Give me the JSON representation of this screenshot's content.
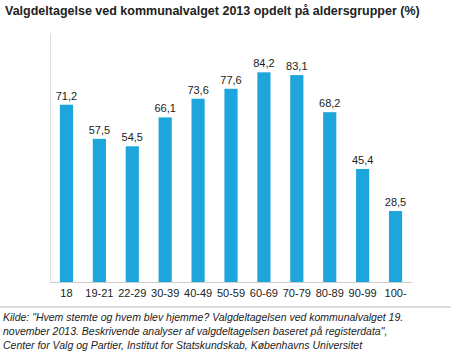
{
  "chart_data": {
    "type": "bar",
    "title": "Valgdeltagelse ved kommunalvalget 2013 opdelt på aldersgrupper (%)",
    "categories": [
      "18",
      "19-21",
      "22-29",
      "30-39",
      "40-49",
      "50-59",
      "60-69",
      "70-79",
      "80-89",
      "90-99",
      "100-"
    ],
    "values": [
      71.2,
      57.5,
      54.5,
      66.1,
      73.6,
      77.6,
      84.2,
      83.1,
      68.2,
      45.4,
      28.5
    ],
    "value_labels": [
      "71,2",
      "57,5",
      "54,5",
      "66,1",
      "73,6",
      "77,6",
      "84,2",
      "83,1",
      "68,2",
      "45,4",
      "28,5"
    ],
    "color": "#1ea5dc",
    "ylim": [
      0,
      100
    ],
    "data_labels": true,
    "tick_labels": "x",
    "grid": false,
    "annotations": [
      "Kilde: \"Hvem stemte og hvem blev hjemme? Valgdeltagelsen ved kommunalvalget 19.",
      "november 2013. Beskrivende analyser af valgdeltagelsen baseret på registerdata\",",
      "Center for Valg og Partier, Institut for Statskundskab, Københavns Universitet"
    ]
  }
}
